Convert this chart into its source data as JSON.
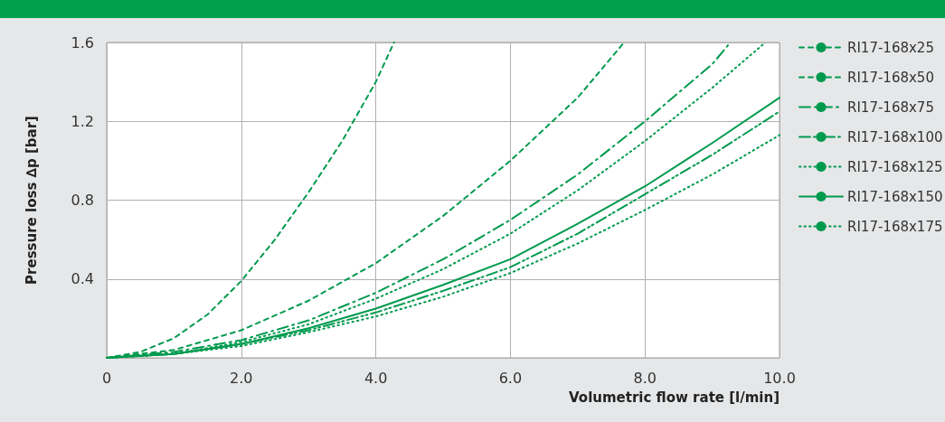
{
  "chart_data": {
    "type": "line",
    "xlabel": "Volumetric flow rate [l/min]",
    "ylabel": "Pressure loss ∆p [bar]",
    "xlim": [
      0,
      10
    ],
    "xticks": [
      0,
      {
        "value": 2,
        "label": "2.0"
      },
      {
        "value": 4,
        "label": "4.0"
      },
      {
        "value": 6,
        "label": "6.0"
      },
      {
        "value": 8,
        "label": "8.0"
      },
      {
        "value": 10,
        "label": "10.0"
      }
    ],
    "ylim": [
      0,
      1.6
    ],
    "yticks": [
      {
        "value": 0,
        "label": null
      },
      0.4,
      0.8,
      1.2,
      1.6
    ],
    "grid": true,
    "legend": "right",
    "marker": "none",
    "series": [
      {
        "name": "RI17-168x25",
        "color": "#009a4e",
        "line_style": "dashed",
        "x": [
          0,
          0.5,
          1,
          1.5,
          2,
          2.5,
          3,
          3.5,
          4,
          4.27
        ],
        "values": [
          0,
          0.03,
          0.1,
          0.22,
          0.39,
          0.6,
          0.84,
          1.1,
          1.4,
          1.6
        ]
      },
      {
        "name": "RI17-168x50",
        "color": "#009a4e",
        "line_style": "dashed",
        "x": [
          0,
          1,
          2,
          3,
          4,
          5,
          6,
          7,
          7.69
        ],
        "values": [
          0,
          0.04,
          0.14,
          0.29,
          0.48,
          0.72,
          1.0,
          1.32,
          1.6
        ]
      },
      {
        "name": "RI17-168x75",
        "color": "#009a4e",
        "line_style": "dashdot",
        "x": [
          0,
          1,
          2,
          3,
          4,
          5,
          6,
          7,
          8,
          9,
          9.27
        ],
        "values": [
          0,
          0.03,
          0.09,
          0.19,
          0.33,
          0.5,
          0.7,
          0.93,
          1.2,
          1.49,
          1.6
        ]
      },
      {
        "name": "RI17-168x100",
        "color": "#009a4e",
        "line_style": "dashdotdot",
        "x": [
          0,
          1,
          2,
          3,
          4,
          5,
          6,
          7,
          8,
          9,
          10
        ],
        "values": [
          0,
          0.02,
          0.07,
          0.14,
          0.23,
          0.34,
          0.46,
          0.63,
          0.83,
          1.03,
          1.25
        ]
      },
      {
        "name": "RI17-168x125",
        "color": "#009a4e",
        "line_style": "dotted",
        "x": [
          0,
          1,
          2,
          3,
          4,
          5,
          6,
          7,
          8,
          9,
          9.79
        ],
        "values": [
          0,
          0.02,
          0.08,
          0.17,
          0.3,
          0.45,
          0.63,
          0.85,
          1.1,
          1.37,
          1.6
        ]
      },
      {
        "name": "RI17-168x150",
        "color": "#009a4e",
        "line_style": "solid",
        "x": [
          0,
          1,
          2,
          3,
          4,
          5,
          6,
          7,
          8,
          9,
          10
        ],
        "values": [
          0,
          0.02,
          0.07,
          0.15,
          0.25,
          0.37,
          0.5,
          0.68,
          0.87,
          1.09,
          1.32
        ]
      },
      {
        "name": "RI17-168x175",
        "color": "#009a4e",
        "line_style": "dotted",
        "x": [
          0,
          1,
          2,
          3,
          4,
          5,
          6,
          7,
          8,
          9,
          10
        ],
        "values": [
          0,
          0.02,
          0.06,
          0.13,
          0.21,
          0.31,
          0.43,
          0.58,
          0.75,
          0.93,
          1.13
        ]
      }
    ]
  }
}
